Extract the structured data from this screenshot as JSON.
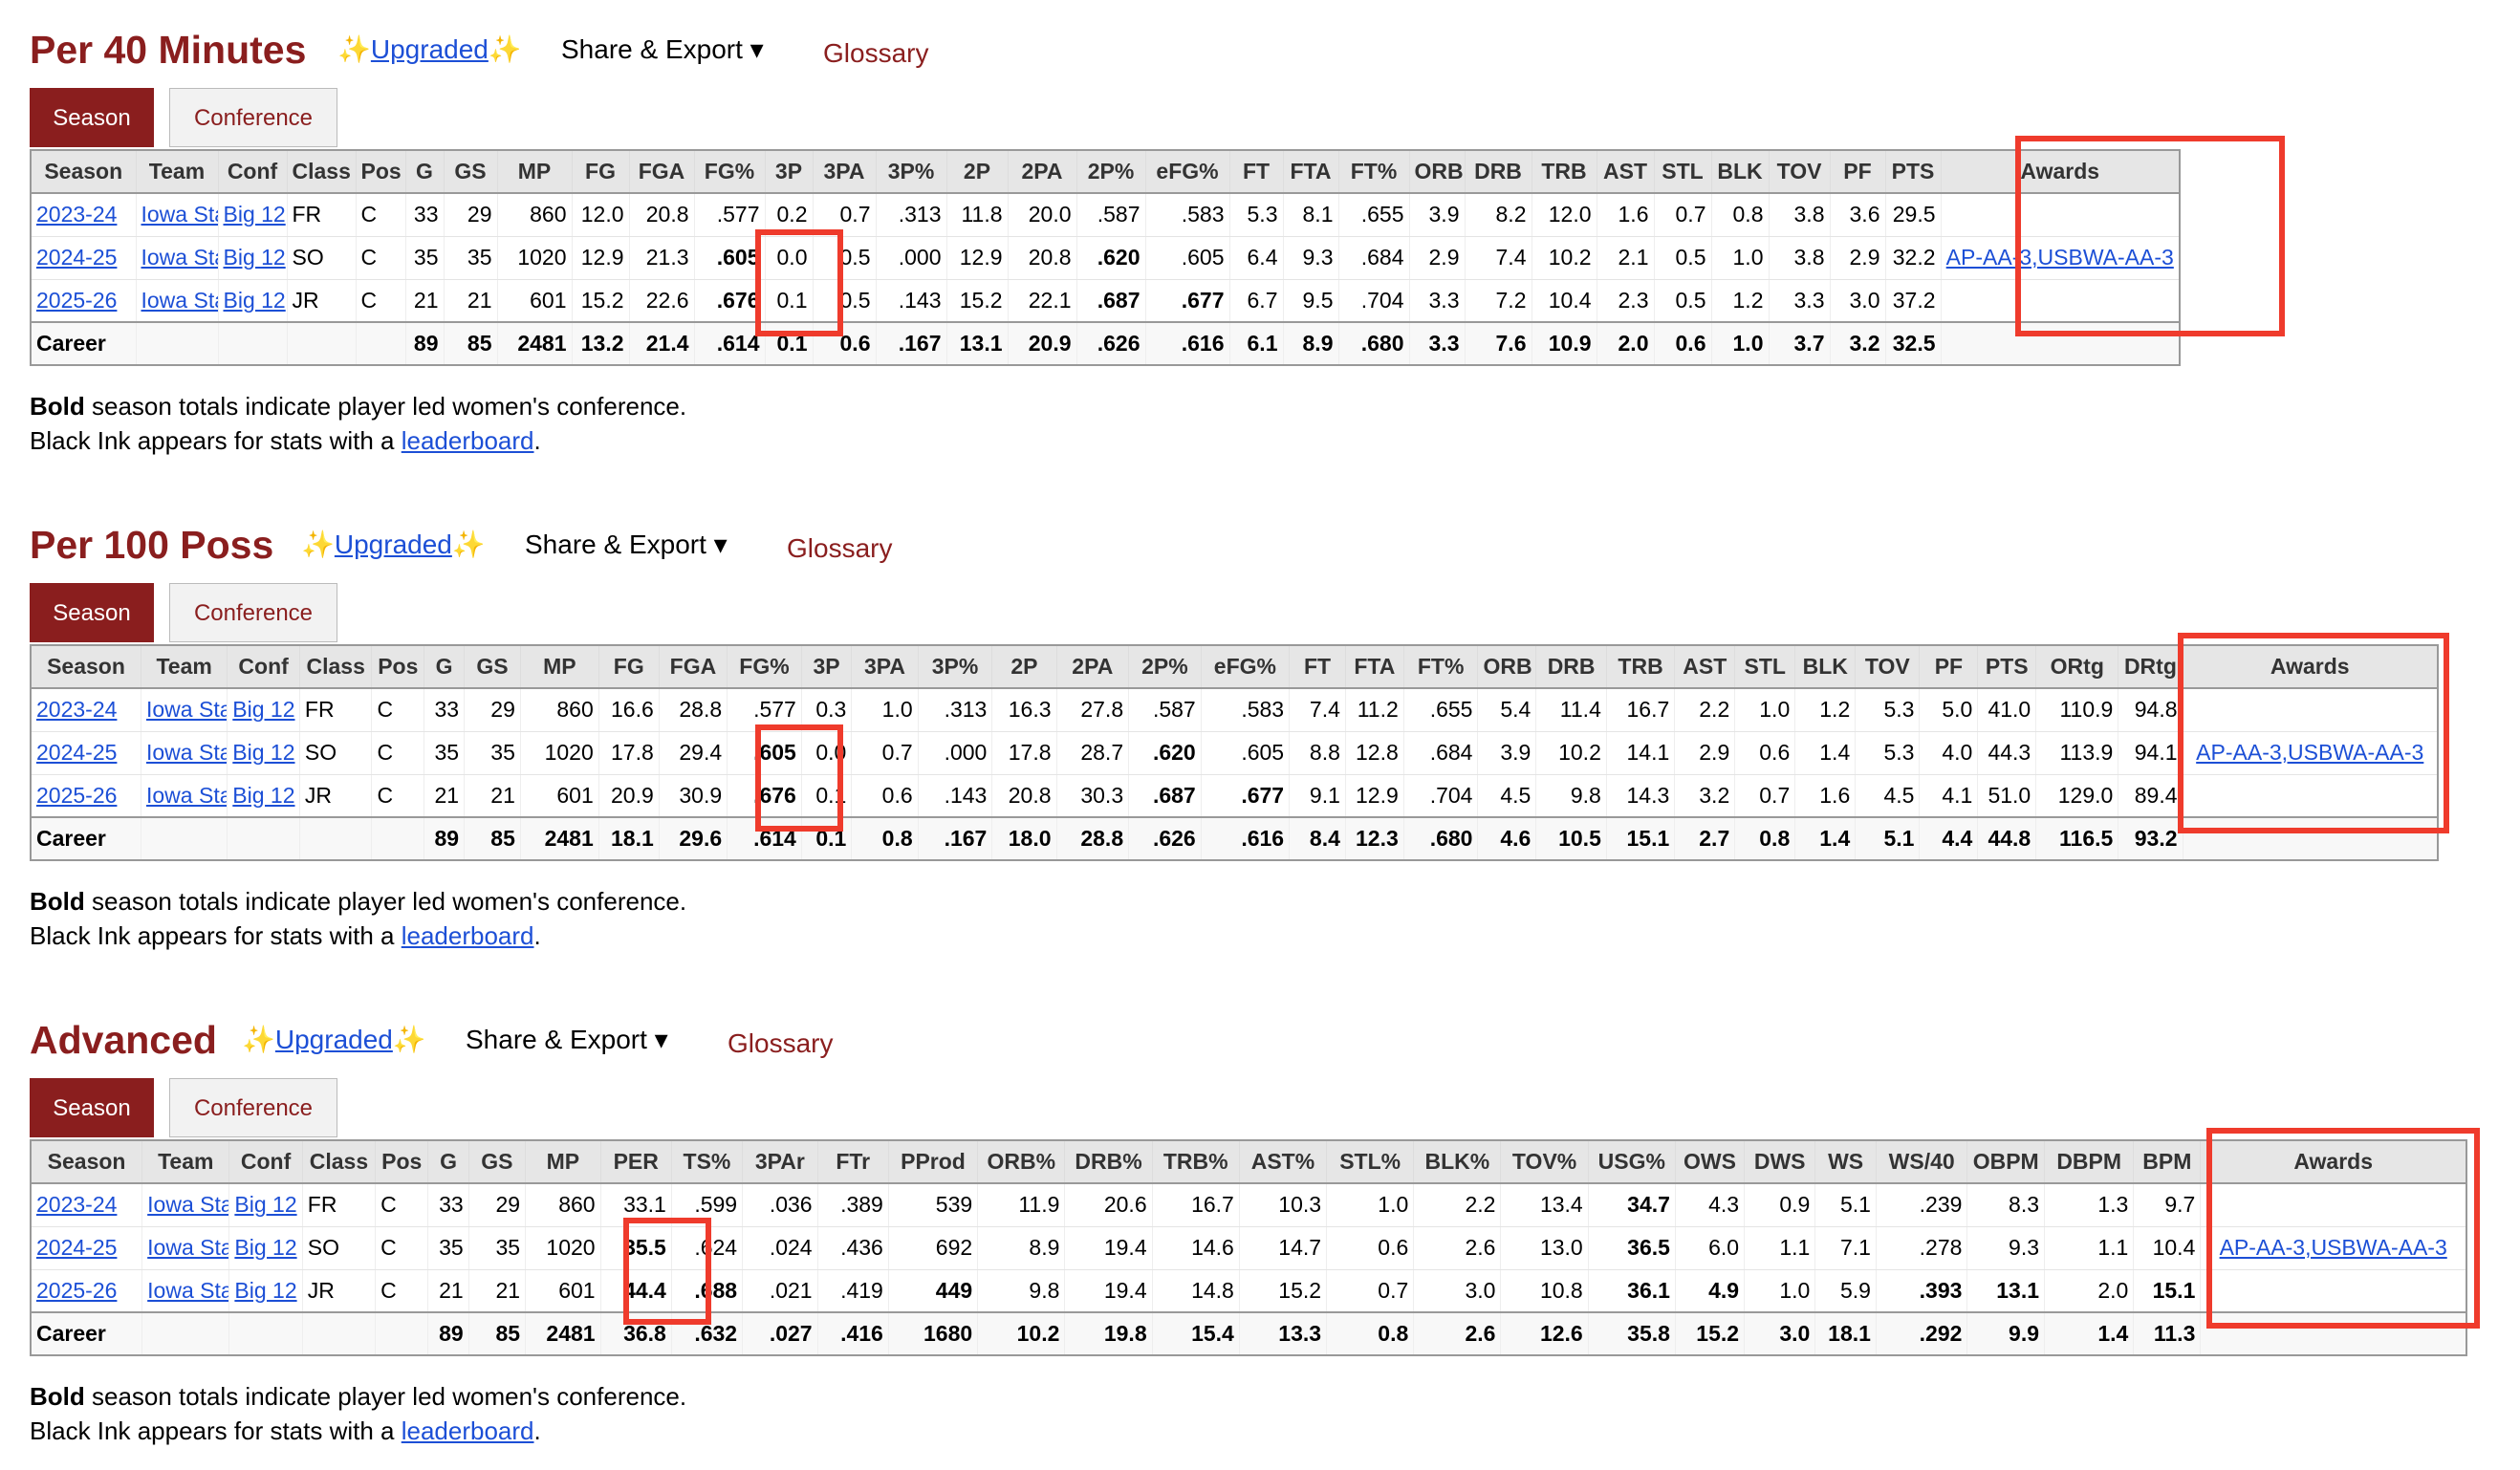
{
  "per40": {
    "title": "Per 40 Minutes",
    "upgraded": "Upgraded",
    "share": "Share & Export ▾",
    "glossary": "Glossary",
    "tabs": [
      "Season",
      "Conference"
    ],
    "headers": [
      "Season",
      "Team",
      "Conf",
      "Class",
      "Pos",
      "G",
      "GS",
      "MP",
      "FG",
      "FGA",
      "FG%",
      "3P",
      "3PA",
      "3P%",
      "2P",
      "2PA",
      "2P%",
      "eFG%",
      "FT",
      "FTA",
      "FT%",
      "ORB",
      "DRB",
      "TRB",
      "AST",
      "STL",
      "BLK",
      "TOV",
      "PF",
      "PTS",
      "Awards"
    ],
    "rows": [
      [
        "2023-24",
        "Iowa State",
        "Big 12",
        "FR",
        "C",
        "33",
        "29",
        "860",
        "12.0",
        "20.8",
        ".577",
        "0.2",
        "0.7",
        ".313",
        "11.8",
        "20.0",
        ".587",
        ".583",
        "5.3",
        "8.1",
        ".655",
        "3.9",
        "8.2",
        "12.0",
        "1.6",
        "0.7",
        "0.8",
        "3.8",
        "3.6",
        "29.5",
        ""
      ],
      [
        "2024-25",
        "Iowa State",
        "Big 12",
        "SO",
        "C",
        "35",
        "35",
        "1020",
        "12.9",
        "21.3",
        ".605",
        "0.0",
        "0.5",
        ".000",
        "12.9",
        "20.8",
        ".620",
        ".605",
        "6.4",
        "9.3",
        ".684",
        "2.9",
        "7.4",
        "10.2",
        "2.1",
        "0.5",
        "1.0",
        "3.8",
        "2.9",
        "32.2",
        "AP-AA-3,USBWA-AA-3"
      ],
      [
        "2025-26",
        "Iowa State",
        "Big 12",
        "JR",
        "C",
        "21",
        "21",
        "601",
        "15.2",
        "22.6",
        ".676",
        "0.1",
        "0.5",
        ".143",
        "15.2",
        "22.1",
        ".687",
        ".677",
        "6.7",
        "9.5",
        ".704",
        "3.3",
        "7.2",
        "10.4",
        "2.3",
        "0.5",
        "1.2",
        "3.3",
        "3.0",
        "37.2",
        ""
      ],
      [
        "Career",
        "",
        "",
        "",
        "",
        "89",
        "85",
        "2481",
        "13.2",
        "21.4",
        ".614",
        "0.1",
        "0.6",
        ".167",
        "13.1",
        "20.9",
        ".626",
        ".616",
        "6.1",
        "8.9",
        ".680",
        "3.3",
        "7.6",
        "10.9",
        "2.0",
        "0.6",
        "1.0",
        "3.7",
        "3.2",
        "32.5",
        ""
      ]
    ],
    "note_bold": "Bold",
    "note_rest": " season totals indicate player led women's conference.",
    "note2_pre": "Black Ink appears for stats with a ",
    "note2_link": "leaderboard",
    "note2_post": "."
  },
  "per100": {
    "title": "Per 100 Poss",
    "upgraded": "Upgraded",
    "share": "Share & Export ▾",
    "glossary": "Glossary",
    "tabs": [
      "Season",
      "Conference"
    ],
    "headers": [
      "Season",
      "Team",
      "Conf",
      "Class",
      "Pos",
      "G",
      "GS",
      "MP",
      "FG",
      "FGA",
      "FG%",
      "3P",
      "3PA",
      "3P%",
      "2P",
      "2PA",
      "2P%",
      "eFG%",
      "FT",
      "FTA",
      "FT%",
      "ORB",
      "DRB",
      "TRB",
      "AST",
      "STL",
      "BLK",
      "TOV",
      "PF",
      "PTS",
      "ORtg",
      "DRtg",
      "Awards"
    ],
    "rows": [
      [
        "2023-24",
        "Iowa State",
        "Big 12",
        "FR",
        "C",
        "33",
        "29",
        "860",
        "16.6",
        "28.8",
        ".577",
        "0.3",
        "1.0",
        ".313",
        "16.3",
        "27.8",
        ".587",
        ".583",
        "7.4",
        "11.2",
        ".655",
        "5.4",
        "11.4",
        "16.7",
        "2.2",
        "1.0",
        "1.2",
        "5.3",
        "5.0",
        "41.0",
        "110.9",
        "94.8",
        ""
      ],
      [
        "2024-25",
        "Iowa State",
        "Big 12",
        "SO",
        "C",
        "35",
        "35",
        "1020",
        "17.8",
        "29.4",
        ".605",
        "0.0",
        "0.7",
        ".000",
        "17.8",
        "28.7",
        ".620",
        ".605",
        "8.8",
        "12.8",
        ".684",
        "3.9",
        "10.2",
        "14.1",
        "2.9",
        "0.6",
        "1.4",
        "5.3",
        "4.0",
        "44.3",
        "113.9",
        "94.1",
        "AP-AA-3,USBWA-AA-3"
      ],
      [
        "2025-26",
        "Iowa State",
        "Big 12",
        "JR",
        "C",
        "21",
        "21",
        "601",
        "20.9",
        "30.9",
        ".676",
        "0.1",
        "0.6",
        ".143",
        "20.8",
        "30.3",
        ".687",
        ".677",
        "9.1",
        "12.9",
        ".704",
        "4.5",
        "9.8",
        "14.3",
        "3.2",
        "0.7",
        "1.6",
        "4.5",
        "4.1",
        "51.0",
        "129.0",
        "89.4",
        ""
      ],
      [
        "Career",
        "",
        "",
        "",
        "",
        "89",
        "85",
        "2481",
        "18.1",
        "29.6",
        ".614",
        "0.1",
        "0.8",
        ".167",
        "18.0",
        "28.8",
        ".626",
        ".616",
        "8.4",
        "12.3",
        ".680",
        "4.6",
        "10.5",
        "15.1",
        "2.7",
        "0.8",
        "1.4",
        "5.1",
        "4.4",
        "44.8",
        "116.5",
        "93.2",
        ""
      ]
    ],
    "note_bold": "Bold",
    "note_rest": " season totals indicate player led women's conference.",
    "note2_pre": "Black Ink appears for stats with a ",
    "note2_link": "leaderboard",
    "note2_post": "."
  },
  "advanced": {
    "title": "Advanced",
    "upgraded": "Upgraded",
    "share": "Share & Export ▾",
    "glossary": "Glossary",
    "tabs": [
      "Season",
      "Conference"
    ],
    "headers": [
      "Season",
      "Team",
      "Conf",
      "Class",
      "Pos",
      "G",
      "GS",
      "MP",
      "PER",
      "TS%",
      "3PAr",
      "FTr",
      "PProd",
      "ORB%",
      "DRB%",
      "TRB%",
      "AST%",
      "STL%",
      "BLK%",
      "TOV%",
      "USG%",
      "OWS",
      "DWS",
      "WS",
      "WS/40",
      "OBPM",
      "DBPM",
      "BPM",
      "Awards"
    ],
    "rows": [
      [
        "2023-24",
        "Iowa State",
        "Big 12",
        "FR",
        "C",
        "33",
        "29",
        "860",
        "33.1",
        ".599",
        ".036",
        ".389",
        "539",
        "11.9",
        "20.6",
        "16.7",
        "10.3",
        "1.0",
        "2.2",
        "13.4",
        "34.7",
        "4.3",
        "0.9",
        "5.1",
        ".239",
        "8.3",
        "1.3",
        "9.7",
        ""
      ],
      [
        "2024-25",
        "Iowa State",
        "Big 12",
        "SO",
        "C",
        "35",
        "35",
        "1020",
        "35.5",
        ".624",
        ".024",
        ".436",
        "692",
        "8.9",
        "19.4",
        "14.6",
        "14.7",
        "0.6",
        "2.6",
        "13.0",
        "36.5",
        "6.0",
        "1.1",
        "7.1",
        ".278",
        "9.3",
        "1.1",
        "10.4",
        "AP-AA-3,USBWA-AA-3"
      ],
      [
        "2025-26",
        "Iowa State",
        "Big 12",
        "JR",
        "C",
        "21",
        "21",
        "601",
        "44.4",
        ".688",
        ".021",
        ".419",
        "449",
        "9.8",
        "19.4",
        "14.8",
        "15.2",
        "0.7",
        "3.0",
        "10.8",
        "36.1",
        "4.9",
        "1.0",
        "5.9",
        ".393",
        "13.1",
        "2.0",
        "15.1",
        ""
      ],
      [
        "Career",
        "",
        "",
        "",
        "",
        "89",
        "85",
        "2481",
        "36.8",
        ".632",
        ".027",
        ".416",
        "1680",
        "10.2",
        "19.8",
        "15.4",
        "13.3",
        "0.8",
        "2.6",
        "12.6",
        "35.8",
        "15.2",
        "3.0",
        "18.1",
        ".292",
        "9.9",
        "1.4",
        "11.3",
        ""
      ]
    ],
    "note_bold": "Bold",
    "note_rest": " season totals indicate player led women's conference.",
    "note2_pre": "Black Ink appears for stats with a ",
    "note2_link": "leaderboard",
    "note2_post": "."
  },
  "colors": {
    "accent": "#8a1e1e",
    "link": "#1c4fd6",
    "highlight": "#ef3b2c"
  }
}
